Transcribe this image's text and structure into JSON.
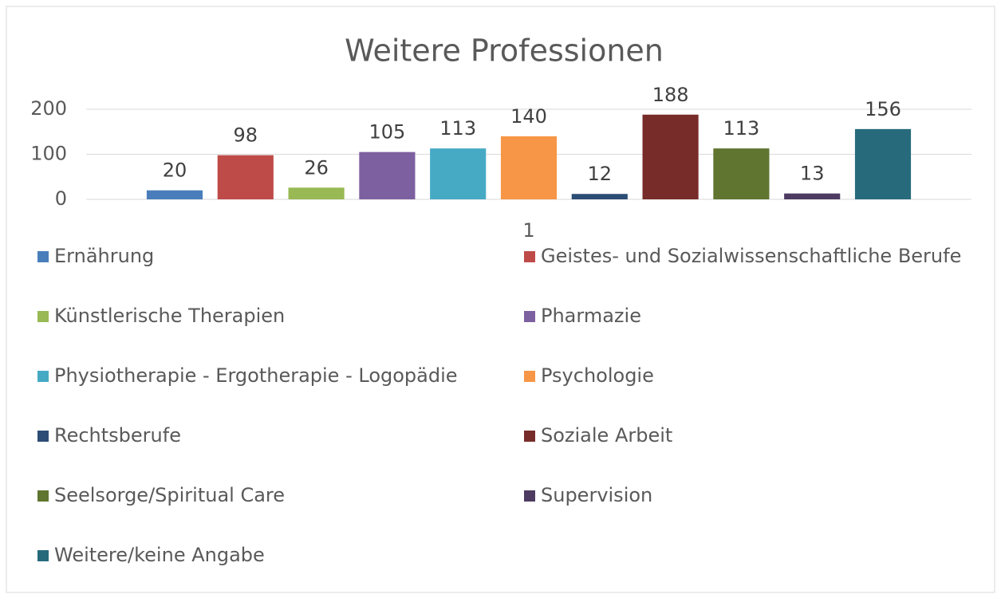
{
  "chart_data": {
    "type": "bar",
    "title": "Weitere Professionen",
    "categories": [
      "1"
    ],
    "series": [
      {
        "name": "Ernährung",
        "color": "#4a7ebb",
        "values": [
          20
        ]
      },
      {
        "name": "Geistes- und Sozialwissenschaftliche Berufe",
        "color": "#be4b48",
        "values": [
          98
        ]
      },
      {
        "name": "Künstlerische Therapien",
        "color": "#98b954",
        "values": [
          26
        ]
      },
      {
        "name": "Pharmazie",
        "color": "#7d60a0",
        "values": [
          105
        ]
      },
      {
        "name": "Physiotherapie - Ergotherapie - Logopädie",
        "color": "#46aac5",
        "values": [
          113
        ]
      },
      {
        "name": "Psychologie",
        "color": "#f79646",
        "values": [
          140
        ]
      },
      {
        "name": "Rechtsberufe",
        "color": "#2c4d75",
        "values": [
          12
        ]
      },
      {
        "name": "Soziale Arbeit",
        "color": "#772c2a",
        "values": [
          188
        ]
      },
      {
        "name": "Seelsorge/Spiritual Care",
        "color": "#5f7530",
        "values": [
          113
        ]
      },
      {
        "name": "Supervision",
        "color": "#4d3b62",
        "values": [
          13
        ]
      },
      {
        "name": "Weitere/keine Angabe",
        "color": "#276a7c",
        "values": [
          156
        ]
      }
    ],
    "ylim": [
      0,
      200
    ],
    "yticks": [
      0,
      100,
      200
    ],
    "grid": true,
    "legend": "bottom"
  }
}
